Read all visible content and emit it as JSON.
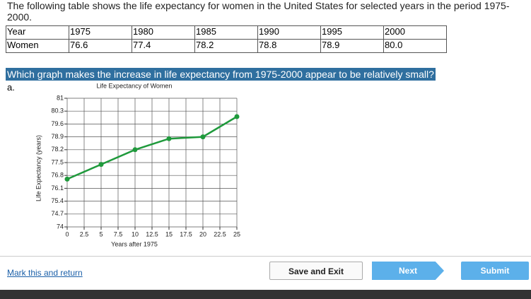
{
  "instructions": "The following table shows the life expectancy for women in the United States for selected years in the period 1975-2000.",
  "table": {
    "rows": [
      [
        "Year",
        "1975",
        "1980",
        "1985",
        "1990",
        "1995",
        "2000"
      ],
      [
        "Women",
        "76.6",
        "77.4",
        "78.2",
        "78.8",
        "78.9",
        "80.0"
      ]
    ]
  },
  "question": "Which graph makes the increase in life expectancy from 1975-2000 appear to be relatively small?",
  "option_label": "a.",
  "chart_data": {
    "type": "line",
    "title": "Life Expectancy of Women",
    "x_label": "Years after 1975",
    "y_label": "Life Expectancy (years)",
    "x": [
      0,
      5,
      10,
      15,
      20,
      25
    ],
    "series": [
      {
        "values": [
          76.6,
          77.4,
          78.2,
          78.8,
          78.9,
          80.0
        ],
        "color": "#1f9a3c"
      }
    ],
    "xlim": [
      0,
      25
    ],
    "xticks": [
      0,
      2.5,
      5,
      7.5,
      10,
      12.5,
      15,
      17.5,
      20,
      22.5,
      25
    ],
    "ylim": [
      74,
      81
    ],
    "yticks": [
      74,
      74.7,
      75.4,
      76.1,
      76.8,
      77.5,
      78.2,
      78.9,
      79.6,
      80.3,
      81
    ],
    "grid": true
  },
  "footer": {
    "link": "Mark this and return",
    "buttons": [
      "Save and Exit",
      "Next",
      "Submit"
    ]
  }
}
